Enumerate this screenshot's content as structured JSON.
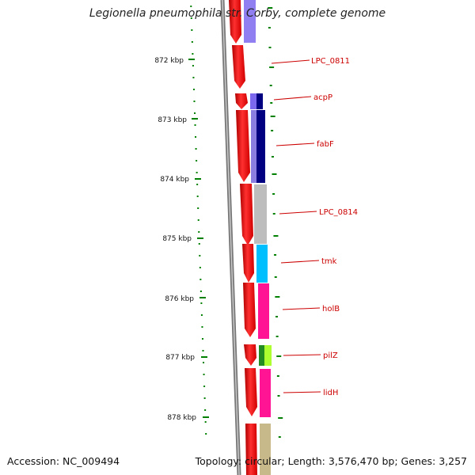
{
  "title": "Legionella pneumophila str. Corby, complete genome",
  "accession": "Accession: NC_009494",
  "topology": "Topology: circular; Length: 3,576,470 bp; Genes: 3,257",
  "ticks": [
    {
      "label": "872 kbp"
    },
    {
      "label": "873 kbp"
    },
    {
      "label": "874 kbp"
    },
    {
      "label": "875 kbp"
    },
    {
      "label": "876 kbp"
    },
    {
      "label": "877 kbp"
    },
    {
      "label": "878 kbp"
    }
  ],
  "genes": [
    {
      "label": "LPC_0811"
    },
    {
      "label": "acpP"
    },
    {
      "label": "fabF"
    },
    {
      "label": "LPC_0814"
    },
    {
      "label": "tmk"
    },
    {
      "label": "holB"
    },
    {
      "label": "pilZ"
    },
    {
      "label": "lidH"
    }
  ],
  "colors": {
    "arrow_red": "#ff0000",
    "tick_green": "#008000",
    "label_red": "#cc0000",
    "backbone_grey": "#808080",
    "purple": "#7b68ee",
    "navy": "#000080",
    "grey": "#bdbdbd",
    "cyan": "#00bfff",
    "magenta": "#ff1493",
    "green": "#228b22",
    "lime": "#adff2f",
    "khaki": "#c8b98a"
  }
}
